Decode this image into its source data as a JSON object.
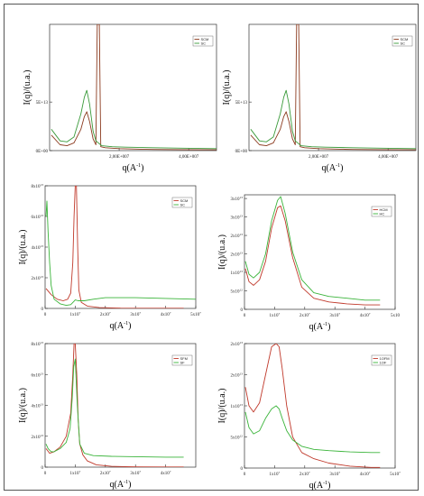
{
  "chart_data": [
    {
      "type": "line",
      "xlabel": "q(A",
      "xlabel_sup": "-1",
      "ylabel": "I(q)/(u.a.)",
      "xlim": [
        0,
        48000000
      ],
      "ylim": [
        0,
        130000000000000
      ],
      "xticks": [
        {
          "v": 20000000,
          "t": "2,00E+007"
        },
        {
          "v": 40000000,
          "t": "4,00E+007"
        }
      ],
      "yticks": [
        {
          "v": 0,
          "t": "0E+00"
        },
        {
          "v": 50000000000000,
          "t": "5E+13"
        }
      ],
      "legend": {
        "position": "top-right",
        "labels": [
          "SCM",
          "SC"
        ]
      },
      "series": [
        {
          "name": "SCM",
          "color": "#8b3a1e",
          "x": [
            500000,
            3000000,
            5000000,
            7000000,
            9000000,
            10000000,
            10700000,
            11500000,
            12500000,
            13300000,
            13700000,
            14000000,
            14300000,
            14700000,
            16000000,
            20000000,
            26000000,
            30000000,
            38000000,
            48000000
          ],
          "y": [
            16000000000000,
            6000000000000,
            5000000000000,
            8000000000000,
            22000000000000,
            35000000000000,
            40000000000000,
            30000000000000,
            12000000000000,
            6000000000000,
            130000000000000,
            130000000000000,
            130000000000000,
            4000000000000,
            3000000000000,
            2000000000000,
            1500000000000,
            1200000000000,
            1000000000000,
            800000000000
          ]
        },
        {
          "name": "SC",
          "color": "#3a9a3a",
          "x": [
            500000,
            3000000,
            5000000,
            7000000,
            9000000,
            10000000,
            10700000,
            11500000,
            12500000,
            13300000,
            15000000,
            18000000,
            22000000,
            30000000,
            38000000,
            48000000
          ],
          "y": [
            22000000000000,
            10000000000000,
            9000000000000,
            14000000000000,
            38000000000000,
            55000000000000,
            62000000000000,
            48000000000000,
            20000000000000,
            10000000000000,
            5000000000000,
            4000000000000,
            3500000000000,
            3000000000000,
            2500000000000,
            2000000000000
          ]
        }
      ]
    },
    {
      "type": "line",
      "xlabel": "q(A",
      "xlabel_sup": "-1",
      "ylabel": "I(q)/(u.a.)",
      "xlim": [
        0,
        48000000
      ],
      "ylim": [
        0,
        130000000000000
      ],
      "xticks": [
        {
          "v": 20000000,
          "t": "2,00E+007"
        },
        {
          "v": 40000000,
          "t": "4,00E+007"
        }
      ],
      "yticks": [
        {
          "v": 0,
          "t": "0E+00"
        },
        {
          "v": 50000000000000,
          "t": "5E+13"
        }
      ],
      "legend": {
        "position": "top-right",
        "labels": [
          "SCM",
          "SC"
        ]
      },
      "series": [
        {
          "name": "SCM",
          "color": "#8b3a1e",
          "x": [
            500000,
            3000000,
            5000000,
            7000000,
            9000000,
            10000000,
            10700000,
            11500000,
            12500000,
            13300000,
            13700000,
            14000000,
            14300000,
            14700000,
            16000000,
            20000000,
            26000000,
            30000000,
            38000000,
            48000000
          ],
          "y": [
            16000000000000,
            6000000000000,
            5000000000000,
            8000000000000,
            22000000000000,
            35000000000000,
            40000000000000,
            30000000000000,
            12000000000000,
            6000000000000,
            130000000000000,
            130000000000000,
            130000000000000,
            4000000000000,
            3000000000000,
            2000000000000,
            1500000000000,
            1200000000000,
            1000000000000,
            800000000000
          ]
        },
        {
          "name": "SC",
          "color": "#3a9a3a",
          "x": [
            500000,
            3000000,
            5000000,
            7000000,
            9000000,
            10000000,
            10700000,
            11500000,
            12500000,
            13300000,
            15000000,
            18000000,
            22000000,
            30000000,
            38000000,
            48000000
          ],
          "y": [
            22000000000000,
            10000000000000,
            9000000000000,
            14000000000000,
            38000000000000,
            55000000000000,
            62000000000000,
            48000000000000,
            20000000000000,
            10000000000000,
            5000000000000,
            4000000000000,
            3500000000000,
            3000000000000,
            2500000000000,
            2000000000000
          ]
        }
      ]
    },
    {
      "type": "line",
      "xlabel": "q(A",
      "xlabel_sup": "-1",
      "ylabel": "I(q)/(u.a.)",
      "xlim": [
        0,
        50000000
      ],
      "ylim": [
        0,
        80000000000000
      ],
      "xticks": [
        {
          "v": 0,
          "t": "0"
        },
        {
          "v": 10000000,
          "t": "1x10",
          "sup": "7"
        },
        {
          "v": 20000000,
          "t": "2x10",
          "sup": "7"
        },
        {
          "v": 30000000,
          "t": "3x10",
          "sup": "7"
        },
        {
          "v": 40000000,
          "t": "4x10",
          "sup": "7"
        },
        {
          "v": 50000000,
          "t": "5x10",
          "sup": "7"
        }
      ],
      "yticks": [
        {
          "v": 0,
          "t": "0"
        },
        {
          "v": 20000000000000,
          "t": "2x10",
          "sup": "13"
        },
        {
          "v": 40000000000000,
          "t": "4x10",
          "sup": "13"
        },
        {
          "v": 60000000000000,
          "t": "6x10",
          "sup": "13"
        },
        {
          "v": 80000000000000,
          "t": "8x10",
          "sup": "13"
        }
      ],
      "legend": {
        "position": "top-right",
        "labels": [
          "SCM",
          "SC"
        ]
      },
      "series": [
        {
          "name": "SCM",
          "color": "#c0392b",
          "x": [
            300000,
            2000000,
            4000000,
            6000000,
            7500000,
            8500000,
            9200000,
            9600000,
            10000000,
            10400000,
            10800000,
            11200000,
            12000000,
            14000000,
            18000000,
            25000000,
            35000000,
            46000000
          ],
          "y": [
            13000000000000,
            9000000000000,
            6000000000000,
            5000000000000,
            6000000000000,
            10000000000000,
            30000000000000,
            60000000000000,
            80000000000000,
            80000000000000,
            40000000000000,
            12000000000000,
            4000000000000,
            1500000000000,
            500000000000,
            200000000000,
            100000000000,
            100000000000
          ]
        },
        {
          "name": "SC",
          "color": "#3ab43a",
          "x": [
            300000,
            600000,
            1000000,
            1500000,
            2000000,
            3000000,
            5000000,
            7000000,
            8500000,
            9500000,
            10000000,
            11000000,
            13000000,
            16000000,
            20000000,
            30000000,
            40000000,
            50000000
          ],
          "y": [
            60000000000000,
            70000000000000,
            50000000000000,
            30000000000000,
            15000000000000,
            6000000000000,
            3000000000000,
            2000000000000,
            2500000000000,
            4500000000000,
            5500000000000,
            5000000000000,
            5000000000000,
            6000000000000,
            7000000000000,
            7000000000000,
            6500000000000,
            6000000000000
          ]
        }
      ]
    },
    {
      "type": "line",
      "xlabel": "q(A",
      "xlabel_sup": "-1",
      "ylabel": "I(q)/(u.a.)",
      "xlim": [
        0,
        50000000
      ],
      "ylim": [
        0,
        31000000000000
      ],
      "xticks": [
        {
          "v": 0,
          "t": "0"
        },
        {
          "v": 10000000,
          "t": "1x10",
          "sup": "7"
        },
        {
          "v": 20000000,
          "t": "2x10",
          "sup": "7"
        },
        {
          "v": 30000000,
          "t": "3x10",
          "sup": "7"
        },
        {
          "v": 40000000,
          "t": "4x10",
          "sup": "7"
        },
        {
          "v": 50000000,
          "t": "5x10"
        }
      ],
      "yticks": [
        {
          "v": 0,
          "t": "0"
        },
        {
          "v": 5000000000000,
          "t": "5x10",
          "sup": "12"
        },
        {
          "v": 10000000000000,
          "t": "1x10",
          "sup": "13"
        },
        {
          "v": 15000000000000,
          "t": "2x10",
          "sup": "13"
        },
        {
          "v": 20000000000000,
          "t": "2x10",
          "sup": "13"
        },
        {
          "v": 25000000000000,
          "t": "3x10",
          "sup": "13"
        },
        {
          "v": 30000000000000,
          "t": "3x10",
          "sup": "13"
        }
      ],
      "legend": {
        "position": "top-right",
        "labels": [
          "HCM",
          "HC"
        ]
      },
      "series": [
        {
          "name": "HCM",
          "color": "#c0392b",
          "x": [
            300000,
            1500000,
            3000000,
            5000000,
            7000000,
            9000000,
            11000000,
            12000000,
            13500000,
            16000000,
            19000000,
            23000000,
            28000000,
            34000000,
            40000000,
            45000000
          ],
          "y": [
            11000000000000,
            7500000000000,
            6500000000000,
            8000000000000,
            13000000000000,
            22000000000000,
            27500000000000,
            28000000000000,
            24000000000000,
            14000000000000,
            6000000000000,
            3000000000000,
            2000000000000,
            1500000000000,
            1200000000000,
            1200000000000
          ]
        },
        {
          "name": "HC",
          "color": "#3ab43a",
          "x": [
            300000,
            1500000,
            3000000,
            5000000,
            7000000,
            9000000,
            11000000,
            12000000,
            13500000,
            16000000,
            19000000,
            23000000,
            28000000,
            34000000,
            40000000,
            45000000
          ],
          "y": [
            13000000000000,
            9500000000000,
            8500000000000,
            10000000000000,
            15000000000000,
            24000000000000,
            29500000000000,
            30500000000000,
            26000000000000,
            15500000000000,
            8000000000000,
            4500000000000,
            3500000000000,
            3000000000000,
            2500000000000,
            2500000000000
          ]
        }
      ]
    },
    {
      "type": "line",
      "xlabel": "q(A",
      "xlabel_sup": "-1",
      "ylabel": "I(q)/(u.a.)",
      "xlim": [
        0,
        50000000
      ],
      "ylim": [
        0,
        80000000000000
      ],
      "xticks": [
        {
          "v": 0,
          "t": "0"
        },
        {
          "v": 10000000,
          "t": "1x10",
          "sup": "7"
        },
        {
          "v": 20000000,
          "t": "2x10",
          "sup": "7"
        },
        {
          "v": 30000000,
          "t": "3x10",
          "sup": "7"
        },
        {
          "v": 40000000,
          "t": "4x10",
          "sup": "7"
        }
      ],
      "yticks": [
        {
          "v": 0,
          "t": "0"
        },
        {
          "v": 20000000000000,
          "t": "2x10",
          "sup": "13"
        },
        {
          "v": 40000000000000,
          "t": "4x10",
          "sup": "13"
        },
        {
          "v": 60000000000000,
          "t": "6x10",
          "sup": "13"
        },
        {
          "v": 80000000000000,
          "t": "8x10",
          "sup": "13"
        }
      ],
      "legend": {
        "position": "top-right",
        "labels": [
          "SFM",
          "SF"
        ]
      },
      "series": [
        {
          "name": "SFM",
          "color": "#c0392b",
          "x": [
            300000,
            1500000,
            3000000,
            5000000,
            7000000,
            8500000,
            9200000,
            9600000,
            10000000,
            10500000,
            11000000,
            11500000,
            12500000,
            14000000,
            17000000,
            22000000,
            30000000,
            40000000,
            46000000
          ],
          "y": [
            12000000000000,
            9000000000000,
            10000000000000,
            13000000000000,
            20000000000000,
            35000000000000,
            60000000000000,
            80000000000000,
            80000000000000,
            60000000000000,
            30000000000000,
            15000000000000,
            8000000000000,
            4000000000000,
            1500000000000,
            500000000000,
            200000000000,
            100000000000,
            100000000000
          ]
        },
        {
          "name": "SF",
          "color": "#3ab43a",
          "x": [
            300000,
            1000000,
            2000000,
            3000000,
            5000000,
            7000000,
            8300000,
            9000000,
            9500000,
            10000000,
            10700000,
            11500000,
            13000000,
            16000000,
            22000000,
            30000000,
            40000000,
            46000000
          ],
          "y": [
            15000000000000,
            12000000000000,
            10000000000000,
            10000000000000,
            12000000000000,
            16000000000000,
            25000000000000,
            45000000000000,
            65000000000000,
            70000000000000,
            40000000000000,
            15000000000000,
            9000000000000,
            7500000000000,
            7000000000000,
            6800000000000,
            6500000000000,
            6500000000000
          ]
        }
      ]
    },
    {
      "type": "line",
      "xlabel": "q(A",
      "xlabel_sup": "-1",
      "ylabel": "I(q)/(u.a.)",
      "xlim": [
        0,
        50000000
      ],
      "ylim": [
        0,
        20000000000000
      ],
      "xticks": [
        {
          "v": 0,
          "t": "0"
        },
        {
          "v": 10000000,
          "t": "1x10",
          "sup": "7"
        },
        {
          "v": 20000000,
          "t": "2x10",
          "sup": "7"
        },
        {
          "v": 30000000,
          "t": "3x10",
          "sup": "7"
        },
        {
          "v": 40000000,
          "t": "4x10",
          "sup": "7"
        },
        {
          "v": 50000000,
          "t": "5x10",
          "sup": "7"
        }
      ],
      "yticks": [
        {
          "v": 0,
          "t": "0"
        },
        {
          "v": 5000000000000,
          "t": "5x10",
          "sup": "12"
        },
        {
          "v": 10000000000000,
          "t": "1x10",
          "sup": "13"
        },
        {
          "v": 15000000000000,
          "t": "2x10",
          "sup": "13"
        },
        {
          "v": 20000000000000,
          "t": "2x10",
          "sup": "13"
        }
      ],
      "legend": {
        "position": "top-right",
        "labels": [
          "1OFM",
          "1OF"
        ]
      },
      "series": [
        {
          "name": "1OFM",
          "color": "#c0392b",
          "x": [
            300000,
            1500000,
            3000000,
            5000000,
            7000000,
            9000000,
            10500000,
            11500000,
            12500000,
            14000000,
            16000000,
            19000000,
            23000000,
            28000000,
            35000000,
            42000000,
            45000000
          ],
          "y": [
            13000000000000,
            10000000000000,
            9000000000000,
            10500000000000,
            15000000000000,
            19500000000000,
            20000000000000,
            19500000000000,
            16000000000000,
            10000000000000,
            5000000000000,
            2500000000000,
            1500000000000,
            800000000000,
            300000000000,
            100000000000,
            100000000000
          ]
        },
        {
          "name": "1OF",
          "color": "#3ab43a",
          "x": [
            300000,
            1500000,
            3000000,
            5000000,
            7000000,
            9000000,
            10500000,
            11500000,
            12500000,
            14000000,
            16000000,
            19000000,
            23000000,
            28000000,
            35000000,
            42000000,
            45000000
          ],
          "y": [
            9000000000000,
            6500000000000,
            5500000000000,
            6000000000000,
            8000000000000,
            9500000000000,
            10000000000000,
            9500000000000,
            8000000000000,
            6000000000000,
            4500000000000,
            3500000000000,
            3000000000000,
            2800000000000,
            2600000000000,
            2500000000000,
            2500000000000
          ]
        }
      ]
    }
  ]
}
